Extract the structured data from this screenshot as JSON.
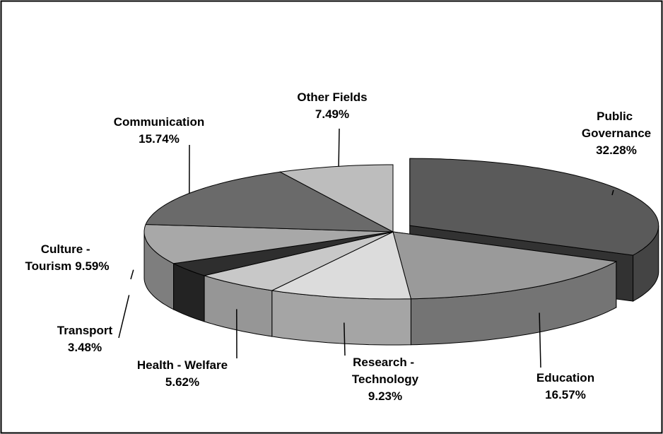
{
  "chart_data": {
    "type": "pie",
    "categories": [
      "Public Governance",
      "Education",
      "Research - Technology",
      "Health - Welfare",
      "Transport",
      "Culture - Tourism",
      "Communication",
      "Other Fields"
    ],
    "values": [
      32.28,
      16.57,
      9.23,
      5.62,
      3.48,
      9.59,
      15.74,
      7.49
    ],
    "value_labels": [
      "32.28%",
      "16.57%",
      "9.23%",
      "5.62%",
      "3.48%",
      "9.59%",
      "15.74%",
      "7.49%"
    ],
    "colors": [
      "#5a5a5a",
      "#9a9a9a",
      "#dcdcdc",
      "#c8c8c8",
      "#2e2e2e",
      "#a8a8a8",
      "#6a6a6a",
      "#bdbdbd"
    ]
  }
}
